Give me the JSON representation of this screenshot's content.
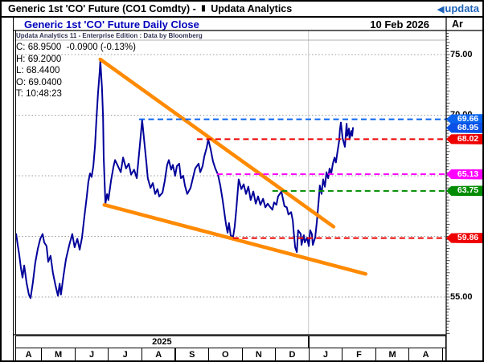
{
  "window": {
    "title_prefix": "Generic 1st 'CO' Future (CO1 Comdty) -",
    "app_name": "Updata Analytics",
    "logo_text": "updata"
  },
  "icons": {
    "app_icon_glyph": "▮",
    "logo_triangle_glyph": "◀"
  },
  "header": {
    "chart_title": "Generic 1st 'CO' Future Daily Close",
    "date": "10 Feb 2026",
    "corner_label": "Ar"
  },
  "attribution": "Updata Analytics 11 - Enterprise Edition : Data by Bloomberg",
  "quote_lines": [
    "C: 68.9500  -0.0900 (-0.13%)",
    "H: 69.2000",
    "L: 68.4400",
    "O: 69.0400",
    "T: 10:48:23"
  ],
  "x_axis": {
    "year_labels": [
      "2025",
      ""
    ],
    "month_labels": [
      "A",
      "M",
      "J",
      "J",
      "A",
      "S",
      "O",
      "N",
      "D",
      "J",
      "F",
      "M",
      "A"
    ]
  },
  "y_axis": {
    "scale_labels": [
      {
        "text": "75.00",
        "price": 75
      },
      {
        "text": "70.00",
        "price": 70
      },
      {
        "text": "55.00",
        "price": 55
      }
    ],
    "gridline_prices": [
      75,
      70,
      65,
      60,
      55
    ]
  },
  "chart_data": {
    "type": "line",
    "title": "Generic 1st 'CO' Future Daily Close",
    "x_unit": "fractional months since 1 Apr 2025 (0 = Apr 2025, 9 = Jan 2026)",
    "xlim": [
      0.22,
      13.12
    ],
    "ylim": [
      51.9,
      77.0
    ],
    "grid": "horizontal-dotted",
    "year_divider_t": 9,
    "last_price": 68.95,
    "series": [
      {
        "name": "CO1 Daily Close",
        "color": "#00009A",
        "points": [
          [
            0.25,
            60.2
          ],
          [
            0.29,
            59.4
          ],
          [
            0.34,
            58.5
          ],
          [
            0.39,
            57.4
          ],
          [
            0.44,
            56.6
          ],
          [
            0.49,
            57.6
          ],
          [
            0.56,
            56.2
          ],
          [
            0.63,
            55.2
          ],
          [
            0.68,
            54.9
          ],
          [
            0.75,
            56.2
          ],
          [
            0.82,
            57.8
          ],
          [
            0.9,
            59.0
          ],
          [
            0.97,
            59.8
          ],
          [
            1.04,
            60.2
          ],
          [
            1.09,
            59.5
          ],
          [
            1.16,
            59.2
          ],
          [
            1.21,
            57.9
          ],
          [
            1.28,
            58.4
          ],
          [
            1.35,
            57.0
          ],
          [
            1.43,
            55.9
          ],
          [
            1.5,
            55.1
          ],
          [
            1.55,
            56.1
          ],
          [
            1.59,
            55.2
          ],
          [
            1.67,
            56.8
          ],
          [
            1.74,
            58.1
          ],
          [
            1.84,
            59.3
          ],
          [
            1.93,
            60.2
          ],
          [
            2.0,
            59.1
          ],
          [
            2.08,
            59.8
          ],
          [
            2.15,
            58.9
          ],
          [
            2.22,
            59.9
          ],
          [
            2.29,
            61.6
          ],
          [
            2.36,
            63.2
          ],
          [
            2.41,
            64.5
          ],
          [
            2.46,
            65.2
          ],
          [
            2.51,
            64.9
          ],
          [
            2.56,
            65.8
          ],
          [
            2.61,
            67.5
          ],
          [
            2.65,
            69.6
          ],
          [
            2.7,
            71.8
          ],
          [
            2.75,
            73.6
          ],
          [
            2.77,
            74.5
          ],
          [
            2.82,
            72.2
          ],
          [
            2.85,
            69.8
          ],
          [
            2.87,
            66.5
          ],
          [
            2.92,
            62.7
          ],
          [
            2.97,
            63.5
          ],
          [
            3.01,
            63.0
          ],
          [
            3.09,
            64.6
          ],
          [
            3.16,
            65.7
          ],
          [
            3.21,
            66.3
          ],
          [
            3.28,
            65.9
          ],
          [
            3.38,
            65.3
          ],
          [
            3.45,
            66.5
          ],
          [
            3.54,
            65.6
          ],
          [
            3.62,
            66.0
          ],
          [
            3.69,
            65.1
          ],
          [
            3.78,
            65.5
          ],
          [
            3.86,
            64.8
          ],
          [
            3.95,
            67.5
          ],
          [
            4.02,
            69.6
          ],
          [
            4.1,
            67.4
          ],
          [
            4.15,
            66.0
          ],
          [
            4.19,
            64.8
          ],
          [
            4.27,
            64.0
          ],
          [
            4.34,
            64.4
          ],
          [
            4.41,
            63.5
          ],
          [
            4.48,
            63.9
          ],
          [
            4.53,
            63.3
          ],
          [
            4.63,
            63.6
          ],
          [
            4.7,
            64.6
          ],
          [
            4.77,
            65.9
          ],
          [
            4.82,
            66.3
          ],
          [
            4.89,
            65.5
          ],
          [
            4.94,
            65.9
          ],
          [
            5.01,
            65.0
          ],
          [
            5.06,
            65.8
          ],
          [
            5.13,
            66.0
          ],
          [
            5.18,
            64.8
          ],
          [
            5.25,
            65.0
          ],
          [
            5.3,
            64.2
          ],
          [
            5.37,
            63.5
          ],
          [
            5.47,
            64.0
          ],
          [
            5.54,
            64.8
          ],
          [
            5.61,
            65.6
          ],
          [
            5.71,
            66.0
          ],
          [
            5.76,
            65.3
          ],
          [
            5.83,
            65.8
          ],
          [
            5.88,
            66.6
          ],
          [
            5.95,
            67.3
          ],
          [
            6.0,
            68.0
          ],
          [
            6.07,
            67.2
          ],
          [
            6.14,
            66.2
          ],
          [
            6.21,
            65.6
          ],
          [
            6.29,
            65.1
          ],
          [
            6.36,
            64.2
          ],
          [
            6.43,
            63.0
          ],
          [
            6.48,
            62.0
          ],
          [
            6.53,
            61.0
          ],
          [
            6.58,
            60.3
          ],
          [
            6.62,
            61.1
          ],
          [
            6.67,
            60.1
          ],
          [
            6.74,
            59.9
          ],
          [
            6.79,
            60.8
          ],
          [
            6.84,
            62.3
          ],
          [
            6.91,
            64.7
          ],
          [
            6.99,
            63.9
          ],
          [
            7.06,
            64.3
          ],
          [
            7.13,
            63.5
          ],
          [
            7.2,
            64.1
          ],
          [
            7.27,
            63.0
          ],
          [
            7.35,
            63.7
          ],
          [
            7.42,
            62.7
          ],
          [
            7.49,
            63.3
          ],
          [
            7.56,
            62.6
          ],
          [
            7.64,
            63.1
          ],
          [
            7.71,
            62.4
          ],
          [
            7.78,
            62.7
          ],
          [
            7.83,
            62.5
          ],
          [
            7.92,
            62.2
          ],
          [
            7.97,
            62.8
          ],
          [
            8.04,
            62.6
          ],
          [
            8.09,
            63.3
          ],
          [
            8.19,
            63.7
          ],
          [
            8.28,
            62.5
          ],
          [
            8.35,
            62.4
          ],
          [
            8.4,
            61.8
          ],
          [
            8.48,
            62.0
          ],
          [
            8.53,
            61.3
          ],
          [
            8.55,
            60.6
          ],
          [
            8.6,
            59.1
          ],
          [
            8.65,
            58.7
          ],
          [
            8.69,
            60.5
          ],
          [
            8.77,
            60.2
          ],
          [
            8.79,
            59.3
          ],
          [
            8.86,
            60.1
          ],
          [
            8.89,
            59.5
          ],
          [
            8.96,
            59.9
          ],
          [
            9.01,
            59.2
          ],
          [
            9.05,
            60.5
          ],
          [
            9.1,
            60.2
          ],
          [
            9.13,
            59.3
          ],
          [
            9.2,
            59.9
          ],
          [
            9.25,
            61.2
          ],
          [
            9.3,
            62.8
          ],
          [
            9.34,
            64.2
          ],
          [
            9.39,
            63.5
          ],
          [
            9.44,
            64.7
          ],
          [
            9.49,
            64.1
          ],
          [
            9.54,
            65.3
          ],
          [
            9.59,
            64.8
          ],
          [
            9.63,
            65.6
          ],
          [
            9.68,
            65.2
          ],
          [
            9.73,
            66.0
          ],
          [
            9.78,
            66.5
          ],
          [
            9.82,
            66.1
          ],
          [
            9.87,
            67.0
          ],
          [
            9.92,
            67.9
          ],
          [
            9.94,
            68.8
          ],
          [
            9.97,
            69.4
          ],
          [
            10.02,
            68.1
          ],
          [
            10.09,
            67.4
          ],
          [
            10.14,
            69.3
          ],
          [
            10.16,
            68.3
          ],
          [
            10.21,
            68.9
          ],
          [
            10.23,
            68.0
          ],
          [
            10.28,
            68.7
          ],
          [
            10.31,
            68.3
          ],
          [
            10.33,
            68.95
          ]
        ]
      }
    ],
    "trendlines": [
      {
        "name": "upper-downtrend-from-june-peak",
        "color": "#FF8A00",
        "from": [
          2.77,
          74.6
        ],
        "to": [
          9.75,
          60.8
        ]
      },
      {
        "name": "lower-downtrend",
        "color": "#FF8A00",
        "from": [
          2.89,
          62.6
        ],
        "to": [
          10.71,
          56.9
        ]
      }
    ],
    "levels": [
      {
        "label": "69.66",
        "price": 69.66,
        "color": "#0A64F0",
        "style": "dashed",
        "from_t": 3.93
      },
      {
        "label": "68.95",
        "price": 68.95,
        "color": "#0A50E6",
        "style": "badge-only"
      },
      {
        "label": "68.02",
        "price": 68.02,
        "color": "#EE0000",
        "style": "dashed",
        "from_t": 5.66
      },
      {
        "label": "65.13",
        "price": 65.13,
        "color": "#FF00FF",
        "style": "dashed",
        "from_t": 6.26
      },
      {
        "label": "63.75",
        "price": 63.75,
        "color": "#008C00",
        "style": "dashed",
        "from_t": 7.92
      },
      {
        "label": "59.86",
        "price": 59.86,
        "color": "#EE0000",
        "style": "dashed",
        "from_t": 6.74
      }
    ]
  },
  "colors": {
    "chart_title": "#0000BB",
    "logo_blue": "#1E62B8",
    "price_line": "#00009A",
    "trendline_orange": "#FF8A00"
  }
}
